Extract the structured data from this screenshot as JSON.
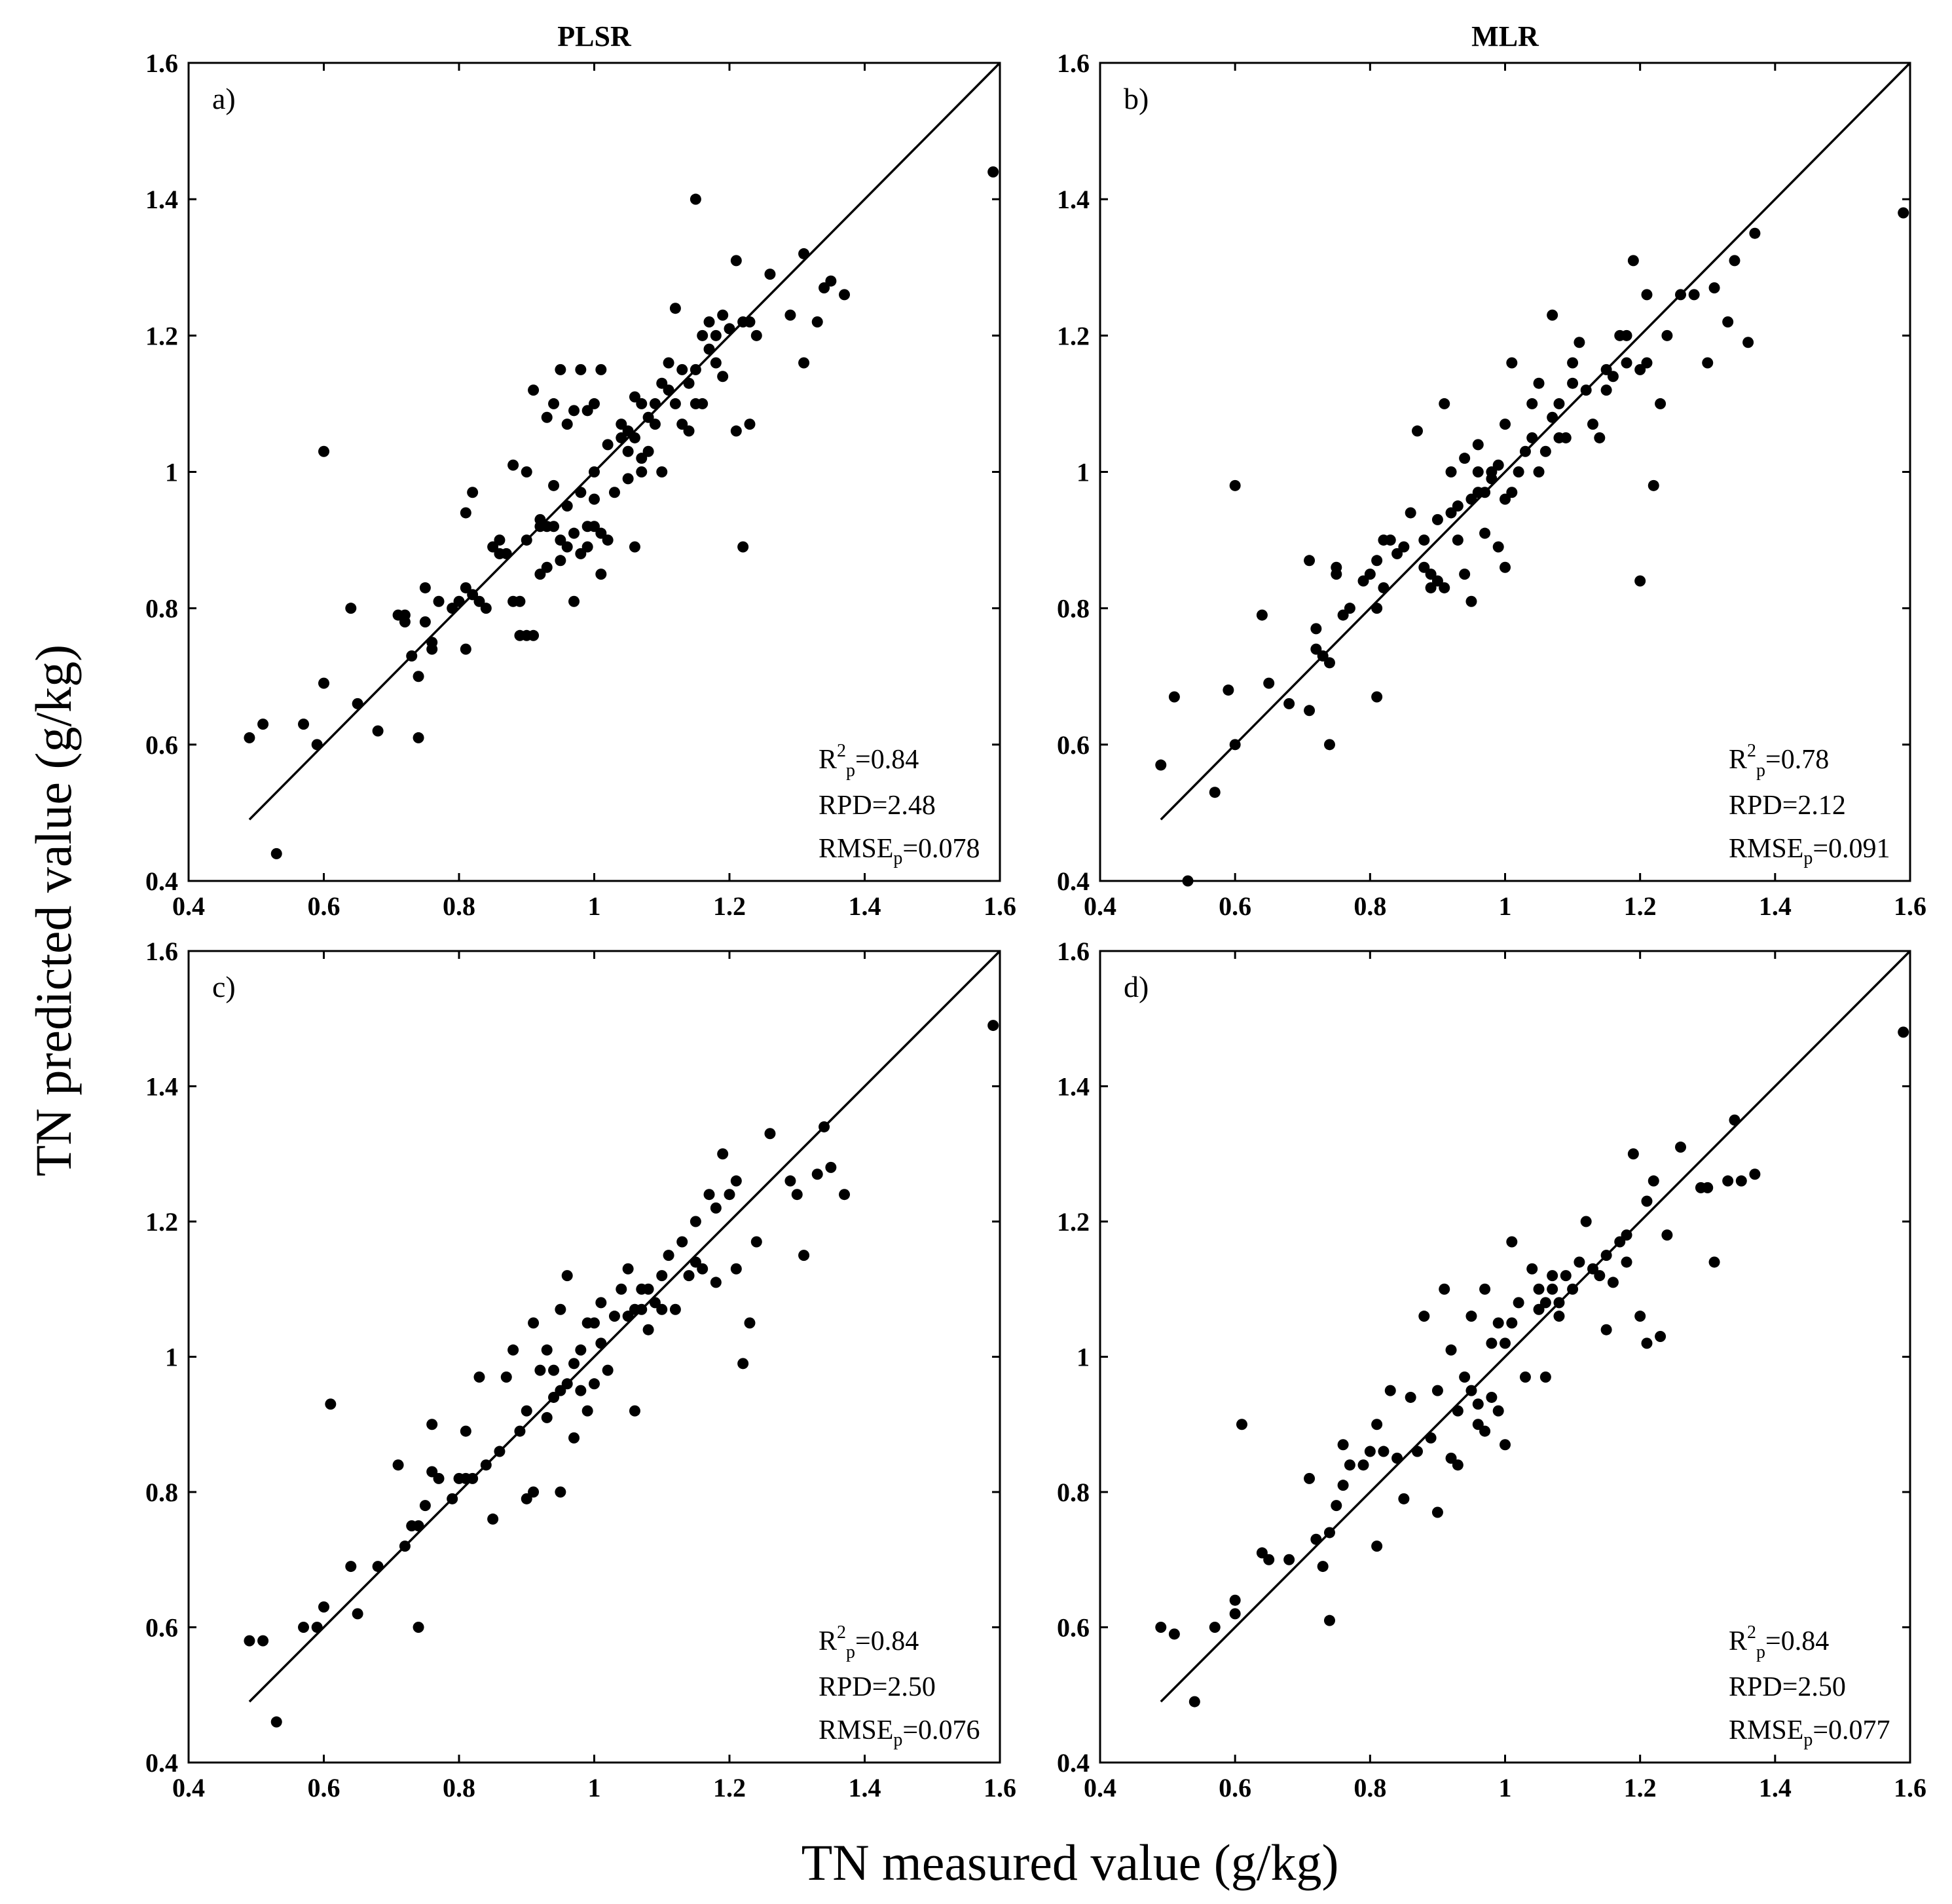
{
  "figure": {
    "xlabel": "TN measured value (g/kg)",
    "ylabel": "TN predicted value (g/kg)",
    "colors": {
      "background": "#ffffff",
      "ink": "#000000"
    }
  },
  "chart_data": [
    {
      "type": "scatter",
      "panel": "a)",
      "title": "PLSR",
      "xlim": [
        0.4,
        1.6
      ],
      "ylim": [
        0.4,
        1.6
      ],
      "xticks": [
        0.4,
        0.6,
        0.8,
        1.0,
        1.2,
        1.4,
        1.6
      ],
      "yticks": [
        0.4,
        0.6,
        0.8,
        1.0,
        1.2,
        1.4,
        1.6
      ],
      "xtick_labels": [
        "0.4",
        "0.6",
        "0.8",
        "1",
        "1.2",
        "1.4",
        "1.6"
      ],
      "ytick_labels": [
        "0.4",
        "0.6",
        "0.8",
        "1",
        "1.2",
        "1.4",
        "1.6"
      ],
      "reference_line": [
        [
          0.49,
          0.49
        ],
        [
          1.6,
          1.6
        ]
      ],
      "stats": {
        "r2": "0.84",
        "rpd": "RPD=2.48",
        "rmse": "0.078"
      },
      "x": [
        0.49,
        0.51,
        0.53,
        0.57,
        0.59,
        0.6,
        0.6,
        0.64,
        0.65,
        0.68,
        0.71,
        0.72,
        0.72,
        0.73,
        0.74,
        0.74,
        0.75,
        0.75,
        0.76,
        0.76,
        0.77,
        0.79,
        0.8,
        0.81,
        0.81,
        0.81,
        0.82,
        0.82,
        0.83,
        0.84,
        0.85,
        0.86,
        0.86,
        0.87,
        0.88,
        0.88,
        0.89,
        0.89,
        0.9,
        0.9,
        0.9,
        0.91,
        0.91,
        0.92,
        0.92,
        0.92,
        0.93,
        0.93,
        0.94,
        0.94,
        0.94,
        0.95,
        0.95,
        0.95,
        0.96,
        0.96,
        0.96,
        0.97,
        0.97,
        0.97,
        0.98,
        0.98,
        0.98,
        0.99,
        0.99,
        0.99,
        1.0,
        1.0,
        1.0,
        1.0,
        1.01,
        1.01,
        1.01,
        1.02,
        1.02,
        1.03,
        1.04,
        1.04,
        1.05,
        1.05,
        1.05,
        1.06,
        1.06,
        1.06,
        1.07,
        1.07,
        1.07,
        1.08,
        1.08,
        1.09,
        1.09,
        1.1,
        1.1,
        1.11,
        1.11,
        1.12,
        1.12,
        1.13,
        1.13,
        1.14,
        1.14,
        1.15,
        1.15,
        1.15,
        1.16,
        1.16,
        1.17,
        1.17,
        1.18,
        1.18,
        1.19,
        1.19,
        1.2,
        1.21,
        1.21,
        1.22,
        1.22,
        1.23,
        1.23,
        1.24,
        1.26,
        1.29,
        1.31,
        1.31,
        1.33,
        1.34,
        1.35,
        1.37,
        1.59,
        0.93
      ],
      "y": [
        0.61,
        0.63,
        0.44,
        0.63,
        0.6,
        1.03,
        0.69,
        0.8,
        0.66,
        0.62,
        0.79,
        0.78,
        0.79,
        0.73,
        0.61,
        0.7,
        0.83,
        0.78,
        0.74,
        0.75,
        0.81,
        0.8,
        0.81,
        0.83,
        0.94,
        0.74,
        0.82,
        0.97,
        0.81,
        0.8,
        0.89,
        0.9,
        0.88,
        0.88,
        1.01,
        0.81,
        0.76,
        0.81,
        1.0,
        0.76,
        0.9,
        1.12,
        0.76,
        0.92,
        0.85,
        0.93,
        1.08,
        0.86,
        0.98,
        0.92,
        1.1,
        0.87,
        1.15,
        0.9,
        0.89,
        0.95,
        1.07,
        1.09,
        0.91,
        0.81,
        0.88,
        0.97,
        1.15,
        0.89,
        0.92,
        1.09,
        0.96,
        0.92,
        1.0,
        1.1,
        0.85,
        0.91,
        1.15,
        0.9,
        1.04,
        0.97,
        1.07,
        1.05,
        0.99,
        1.06,
        1.03,
        0.89,
        1.11,
        1.05,
        1.02,
        1.1,
        1.0,
        1.03,
        1.08,
        1.1,
        1.07,
        1.13,
        1.0,
        1.12,
        1.16,
        1.24,
        1.1,
        1.15,
        1.07,
        1.13,
        1.06,
        1.4,
        1.1,
        1.15,
        1.2,
        1.1,
        1.22,
        1.18,
        1.2,
        1.16,
        1.14,
        1.23,
        1.21,
        1.31,
        1.06,
        1.22,
        0.89,
        1.22,
        1.07,
        1.2,
        1.29,
        1.23,
        1.32,
        1.16,
        1.22,
        1.27,
        1.28,
        1.26,
        1.44,
        0.92
      ]
    },
    {
      "type": "scatter",
      "panel": "b)",
      "title": "MLR",
      "xlim": [
        0.4,
        1.6
      ],
      "ylim": [
        0.4,
        1.6
      ],
      "xticks": [
        0.4,
        0.6,
        0.8,
        1.0,
        1.2,
        1.4,
        1.6
      ],
      "yticks": [
        0.4,
        0.6,
        0.8,
        1.0,
        1.2,
        1.4,
        1.6
      ],
      "xtick_labels": [
        "0.4",
        "0.6",
        "0.8",
        "1",
        "1.2",
        "1.4",
        "1.6"
      ],
      "ytick_labels": [
        "0.4",
        "0.6",
        "0.8",
        "1",
        "1.2",
        "1.4",
        "1.6"
      ],
      "reference_line": [
        [
          0.49,
          0.49
        ],
        [
          1.6,
          1.6
        ]
      ],
      "stats": {
        "r2": "0.78",
        "rpd": "RPD=2.12",
        "rmse": "0.091"
      },
      "x": [
        0.49,
        0.51,
        0.53,
        0.57,
        0.59,
        0.6,
        0.6,
        0.64,
        0.65,
        0.68,
        0.71,
        0.71,
        0.72,
        0.72,
        0.73,
        0.74,
        0.74,
        0.75,
        0.75,
        0.76,
        0.77,
        0.79,
        0.8,
        0.81,
        0.81,
        0.81,
        0.82,
        0.82,
        0.83,
        0.84,
        0.85,
        0.86,
        0.87,
        0.88,
        0.88,
        0.89,
        0.89,
        0.9,
        0.9,
        0.91,
        0.91,
        0.92,
        0.92,
        0.93,
        0.93,
        0.94,
        0.94,
        0.95,
        0.95,
        0.96,
        0.96,
        0.96,
        0.97,
        0.97,
        0.98,
        0.98,
        0.99,
        0.99,
        1.0,
        1.0,
        1.0,
        1.01,
        1.01,
        1.02,
        1.03,
        1.04,
        1.04,
        1.05,
        1.05,
        1.06,
        1.07,
        1.07,
        1.08,
        1.08,
        1.09,
        1.1,
        1.1,
        1.11,
        1.12,
        1.13,
        1.14,
        1.15,
        1.15,
        1.16,
        1.17,
        1.18,
        1.18,
        1.19,
        1.2,
        1.2,
        1.21,
        1.21,
        1.22,
        1.23,
        1.24,
        1.26,
        1.28,
        1.3,
        1.31,
        1.33,
        1.34,
        1.36,
        1.37,
        1.59
      ],
      "y": [
        0.57,
        0.67,
        0.4,
        0.53,
        0.68,
        0.98,
        0.6,
        0.79,
        0.69,
        0.66,
        0.87,
        0.65,
        0.77,
        0.74,
        0.73,
        0.6,
        0.72,
        0.86,
        0.85,
        0.79,
        0.8,
        0.84,
        0.85,
        0.8,
        0.87,
        0.67,
        0.9,
        0.83,
        0.9,
        0.88,
        0.89,
        0.94,
        1.06,
        0.86,
        0.9,
        0.85,
        0.83,
        0.93,
        0.84,
        1.1,
        0.83,
        1.0,
        0.94,
        0.95,
        0.9,
        1.02,
        0.85,
        0.96,
        0.81,
        1.04,
        0.97,
        1.0,
        0.91,
        0.97,
        0.99,
        1.0,
        0.89,
        1.01,
        1.07,
        0.86,
        0.96,
        1.16,
        0.97,
        1.0,
        1.03,
        1.1,
        1.05,
        1.13,
        1.0,
        1.03,
        1.08,
        1.23,
        1.1,
        1.05,
        1.05,
        1.13,
        1.16,
        1.19,
        1.12,
        1.07,
        1.05,
        1.15,
        1.12,
        1.14,
        1.2,
        1.16,
        1.2,
        1.31,
        0.84,
        1.15,
        1.26,
        1.16,
        0.98,
        1.1,
        1.2,
        1.26,
        1.26,
        1.16,
        1.27,
        1.22,
        1.31,
        1.19,
        1.35,
        1.38
      ]
    },
    {
      "type": "scatter",
      "panel": "c)",
      "title": "",
      "xlim": [
        0.4,
        1.6
      ],
      "ylim": [
        0.4,
        1.6
      ],
      "xticks": [
        0.4,
        0.6,
        0.8,
        1.0,
        1.2,
        1.4,
        1.6
      ],
      "yticks": [
        0.4,
        0.6,
        0.8,
        1.0,
        1.2,
        1.4,
        1.6
      ],
      "xtick_labels": [
        "0.4",
        "0.6",
        "0.8",
        "1",
        "1.2",
        "1.4",
        "1.6"
      ],
      "ytick_labels": [
        "0.4",
        "0.6",
        "0.8",
        "1",
        "1.2",
        "1.4",
        "1.6"
      ],
      "reference_line": [
        [
          0.49,
          0.49
        ],
        [
          1.6,
          1.6
        ]
      ],
      "stats": {
        "r2": "0.84",
        "rpd": "RPD=2.50",
        "rmse": "0.076"
      },
      "x": [
        0.49,
        0.51,
        0.53,
        0.57,
        0.59,
        0.6,
        0.61,
        0.64,
        0.65,
        0.68,
        0.71,
        0.72,
        0.73,
        0.74,
        0.74,
        0.75,
        0.76,
        0.76,
        0.77,
        0.79,
        0.8,
        0.81,
        0.81,
        0.82,
        0.83,
        0.84,
        0.85,
        0.86,
        0.87,
        0.88,
        0.89,
        0.9,
        0.9,
        0.91,
        0.91,
        0.92,
        0.93,
        0.93,
        0.94,
        0.94,
        0.95,
        0.95,
        0.95,
        0.96,
        0.96,
        0.97,
        0.97,
        0.98,
        0.98,
        0.99,
        0.99,
        1.0,
        1.0,
        1.01,
        1.01,
        1.02,
        1.03,
        1.04,
        1.05,
        1.05,
        1.06,
        1.06,
        1.07,
        1.07,
        1.08,
        1.08,
        1.09,
        1.1,
        1.1,
        1.11,
        1.12,
        1.13,
        1.14,
        1.15,
        1.15,
        1.16,
        1.17,
        1.18,
        1.18,
        1.19,
        1.2,
        1.21,
        1.21,
        1.22,
        1.23,
        1.24,
        1.26,
        1.29,
        1.3,
        1.31,
        1.33,
        1.34,
        1.35,
        1.37,
        1.59
      ],
      "y": [
        0.58,
        0.58,
        0.46,
        0.6,
        0.6,
        0.63,
        0.93,
        0.69,
        0.62,
        0.69,
        0.84,
        0.72,
        0.75,
        0.6,
        0.75,
        0.78,
        0.9,
        0.83,
        0.82,
        0.79,
        0.82,
        0.89,
        0.82,
        0.82,
        0.97,
        0.84,
        0.76,
        0.86,
        0.97,
        1.01,
        0.89,
        0.79,
        0.92,
        1.05,
        0.8,
        0.98,
        1.01,
        0.91,
        0.94,
        0.98,
        1.07,
        0.8,
        0.95,
        0.96,
        1.12,
        0.88,
        0.99,
        0.95,
        1.01,
        0.92,
        1.05,
        0.96,
        1.05,
        1.02,
        1.08,
        0.98,
        1.06,
        1.1,
        1.13,
        1.06,
        0.92,
        1.07,
        1.07,
        1.1,
        1.1,
        1.04,
        1.08,
        1.12,
        1.07,
        1.15,
        1.07,
        1.17,
        1.12,
        1.2,
        1.14,
        1.13,
        1.24,
        1.22,
        1.11,
        1.3,
        1.24,
        1.26,
        1.13,
        0.99,
        1.05,
        1.17,
        1.33,
        1.26,
        1.24,
        1.15,
        1.27,
        1.34,
        1.28,
        1.24,
        1.49
      ]
    },
    {
      "type": "scatter",
      "panel": "d)",
      "title": "",
      "xlim": [
        0.4,
        1.6
      ],
      "ylim": [
        0.4,
        1.6
      ],
      "xticks": [
        0.4,
        0.6,
        0.8,
        1.0,
        1.2,
        1.4,
        1.6
      ],
      "yticks": [
        0.4,
        0.6,
        0.8,
        1.0,
        1.2,
        1.4,
        1.6
      ],
      "xtick_labels": [
        "0.4",
        "0.6",
        "0.8",
        "1",
        "1.2",
        "1.4",
        "1.6"
      ],
      "ytick_labels": [
        "0.4",
        "0.6",
        "0.8",
        "1",
        "1.2",
        "1.4",
        "1.6"
      ],
      "reference_line": [
        [
          0.49,
          0.49
        ],
        [
          1.6,
          1.6
        ]
      ],
      "stats": {
        "r2": "0.84",
        "rpd": "RPD=2.50",
        "rmse": "0.077"
      },
      "x": [
        0.49,
        0.51,
        0.54,
        0.57,
        0.6,
        0.6,
        0.61,
        0.64,
        0.65,
        0.68,
        0.71,
        0.72,
        0.73,
        0.74,
        0.74,
        0.75,
        0.76,
        0.76,
        0.77,
        0.79,
        0.8,
        0.81,
        0.81,
        0.82,
        0.83,
        0.84,
        0.85,
        0.86,
        0.87,
        0.88,
        0.89,
        0.9,
        0.9,
        0.91,
        0.92,
        0.92,
        0.93,
        0.93,
        0.94,
        0.95,
        0.95,
        0.96,
        0.96,
        0.97,
        0.97,
        0.98,
        0.98,
        0.99,
        0.99,
        1.0,
        1.0,
        1.01,
        1.01,
        1.02,
        1.03,
        1.04,
        1.05,
        1.05,
        1.06,
        1.06,
        1.07,
        1.07,
        1.08,
        1.08,
        1.09,
        1.1,
        1.11,
        1.12,
        1.13,
        1.14,
        1.15,
        1.15,
        1.16,
        1.17,
        1.18,
        1.18,
        1.19,
        1.2,
        1.21,
        1.21,
        1.22,
        1.23,
        1.24,
        1.26,
        1.29,
        1.3,
        1.31,
        1.33,
        1.34,
        1.35,
        1.37,
        1.59
      ],
      "y": [
        0.6,
        0.59,
        0.49,
        0.6,
        0.64,
        0.62,
        0.9,
        0.71,
        0.7,
        0.7,
        0.82,
        0.73,
        0.69,
        0.61,
        0.74,
        0.78,
        0.87,
        0.81,
        0.84,
        0.84,
        0.86,
        0.9,
        0.72,
        0.86,
        0.95,
        0.85,
        0.79,
        0.94,
        0.86,
        1.06,
        0.88,
        0.77,
        0.95,
        1.1,
        0.85,
        1.01,
        0.92,
        0.84,
        0.97,
        0.95,
        1.06,
        0.9,
        0.93,
        1.1,
        0.89,
        1.02,
        0.94,
        1.05,
        0.92,
        1.02,
        0.87,
        1.05,
        1.17,
        1.08,
        0.97,
        1.13,
        1.1,
        1.07,
        0.97,
        1.08,
        1.1,
        1.12,
        1.08,
        1.06,
        1.12,
        1.1,
        1.14,
        1.2,
        1.13,
        1.12,
        1.04,
        1.15,
        1.11,
        1.17,
        1.18,
        1.14,
        1.3,
        1.06,
        1.23,
        1.02,
        1.26,
        1.03,
        1.18,
        1.31,
        1.25,
        1.25,
        1.14,
        1.26,
        1.35,
        1.26,
        1.27,
        1.48
      ]
    }
  ]
}
